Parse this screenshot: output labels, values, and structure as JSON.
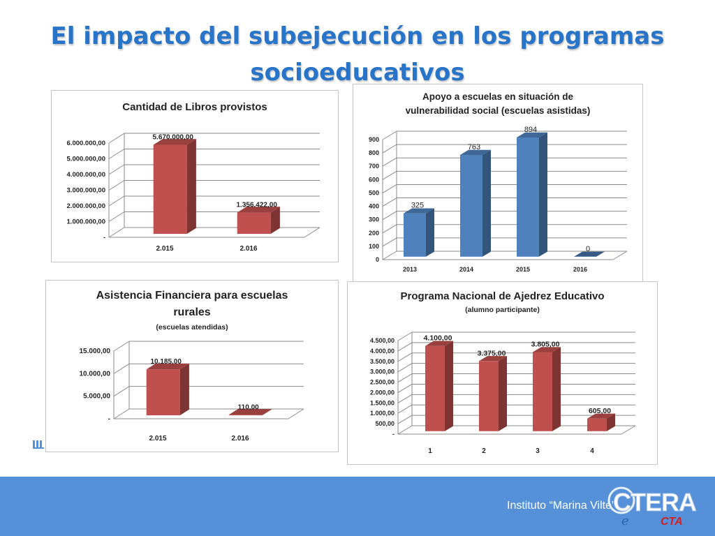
{
  "title": "El impacto del subejecución en los programas socioeducativos",
  "footer": {
    "institute": "Instituto “Marina Vilte”",
    "logo_text": "CTERA",
    "sub_logo_text": "CTA"
  },
  "colors": {
    "title": "#2874c8",
    "red_bar": "#c0504d",
    "blue_bar": "#4f81bd",
    "footer": "#5590d8"
  },
  "chart_data": [
    {
      "type": "bar",
      "title": "Cantidad de Libros provistos",
      "subtitle": "",
      "categories": [
        "2.015",
        "2.016"
      ],
      "values": [
        5670000,
        1356422
      ],
      "value_labels": [
        "5.670.000,00",
        "1.356.422,00"
      ],
      "yticks": [
        "-",
        "1.000.000,00",
        "2.000.000,00",
        "3.000.000,00",
        "4.000.000,00",
        "5.000.000,00",
        "6.000.000,00"
      ],
      "ylim": [
        0,
        6000000
      ],
      "grid": true,
      "color": "#c0504d"
    },
    {
      "type": "bar",
      "title": "Apoyo a escuelas en situación de vulnerabilidad social (escuelas asistidas)",
      "subtitle": "",
      "categories": [
        "2013",
        "2014",
        "2015",
        "2016"
      ],
      "values": [
        325,
        763,
        894,
        0
      ],
      "value_labels": [
        "325",
        "763",
        "894",
        "0"
      ],
      "yticks": [
        "0",
        "100",
        "200",
        "300",
        "400",
        "500",
        "600",
        "700",
        "800",
        "900"
      ],
      "ylim": [
        0,
        900
      ],
      "grid": true,
      "color": "#4f81bd"
    },
    {
      "type": "bar",
      "title": "Asistencia Financiera para escuelas rurales",
      "subtitle": "(escuelas atendidas)",
      "categories": [
        "2.015",
        "2.016"
      ],
      "values": [
        10185,
        110
      ],
      "value_labels": [
        "10.185,00",
        "110,00"
      ],
      "yticks": [
        "-",
        "5.000,00",
        "10.000,00",
        "15.000,00"
      ],
      "ylim": [
        0,
        15000
      ],
      "grid": true,
      "color": "#c0504d"
    },
    {
      "type": "bar",
      "title": "Programa Nacional de Ajedrez Educativo",
      "subtitle": "(alumno participante)",
      "categories": [
        "1",
        "2",
        "3",
        "4"
      ],
      "values": [
        4100,
        3375,
        3805,
        605
      ],
      "value_labels": [
        "4.100,00",
        "3.375,00",
        "3.805,00",
        "605,00"
      ],
      "yticks": [
        "-",
        "500,00",
        "1.000,00",
        "1.500,00",
        "2.000,00",
        "2.500,00",
        "3.000,00",
        "3.500,00",
        "4.000,00",
        "4.500,00"
      ],
      "ylim": [
        0,
        4500
      ],
      "grid": true,
      "color": "#c0504d"
    }
  ]
}
